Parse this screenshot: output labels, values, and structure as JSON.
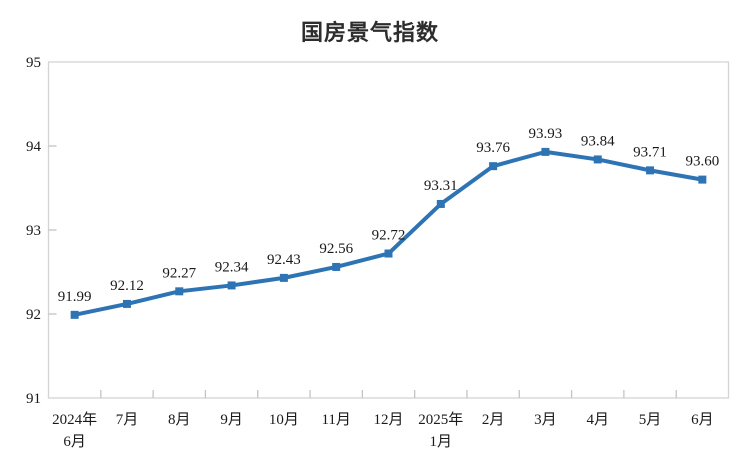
{
  "chart_data": {
    "type": "line",
    "title": "国房景气指数",
    "categories": [
      "2024年\n6月",
      "7月",
      "8月",
      "9月",
      "10月",
      "11月",
      "12月",
      "2025年\n1月",
      "2月",
      "3月",
      "4月",
      "5月",
      "6月"
    ],
    "values": [
      91.99,
      92.12,
      92.27,
      92.34,
      92.43,
      92.56,
      92.72,
      93.31,
      93.76,
      93.93,
      93.84,
      93.71,
      93.6
    ],
    "data_labels": [
      "91.99",
      "92.12",
      "92.27",
      "92.34",
      "92.43",
      "92.56",
      "92.72",
      "93.31",
      "93.76",
      "93.93",
      "93.84",
      "93.71",
      "93.60"
    ],
    "y_ticks": [
      "95",
      "94",
      "93",
      "92",
      "91"
    ],
    "y_tick_values": [
      95,
      94,
      93,
      92,
      91
    ],
    "ylim": [
      91,
      95
    ],
    "xlabel": "",
    "ylabel": "",
    "legend": "none",
    "grid": false,
    "line_color": "#2E74B5",
    "marker": "square",
    "marker_color": "#2E74B5",
    "border_color": "#D4D4D4",
    "tick_color": "#C4C4C4",
    "text_color": "#1a1a1a",
    "title_color": "#2d2d2d",
    "background_color": "#ffffff"
  }
}
